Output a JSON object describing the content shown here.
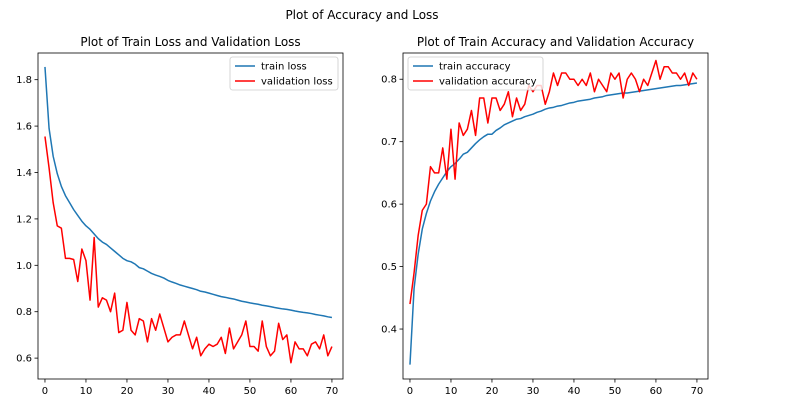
{
  "suptitle": "Plot of Accuracy and Loss",
  "chart_data": [
    {
      "type": "line",
      "title": "Plot of Train Loss and Validation Loss",
      "xlabel": "",
      "ylabel": "",
      "xlim": [
        -1.7,
        72.7
      ],
      "ylim": [
        0.51,
        1.915
      ],
      "xticks": [
        0,
        10,
        20,
        30,
        40,
        50,
        60,
        70
      ],
      "yticks": [
        0.6,
        0.8,
        1.0,
        1.2,
        1.4,
        1.6,
        1.8
      ],
      "ytick_format": 1,
      "grid": false,
      "legend": "upper right",
      "x": [
        0,
        1,
        2,
        3,
        4,
        5,
        6,
        7,
        8,
        9,
        10,
        11,
        12,
        13,
        14,
        15,
        16,
        17,
        18,
        19,
        20,
        21,
        22,
        23,
        24,
        25,
        26,
        27,
        28,
        29,
        30,
        31,
        32,
        33,
        34,
        35,
        36,
        37,
        38,
        39,
        40,
        41,
        42,
        43,
        44,
        45,
        46,
        47,
        48,
        49,
        50,
        51,
        52,
        53,
        54,
        55,
        56,
        57,
        58,
        59,
        60,
        61,
        62,
        63,
        64,
        65,
        66,
        67,
        68,
        69,
        70
      ],
      "series": [
        {
          "name": "train loss",
          "color": "#1f77b4",
          "values": [
            1.855,
            1.59,
            1.47,
            1.395,
            1.34,
            1.3,
            1.27,
            1.24,
            1.215,
            1.19,
            1.17,
            1.155,
            1.135,
            1.115,
            1.1,
            1.09,
            1.075,
            1.06,
            1.045,
            1.03,
            1.02,
            1.015,
            1.005,
            0.99,
            0.985,
            0.975,
            0.965,
            0.958,
            0.952,
            0.945,
            0.935,
            0.928,
            0.922,
            0.915,
            0.91,
            0.905,
            0.9,
            0.895,
            0.888,
            0.885,
            0.88,
            0.875,
            0.87,
            0.865,
            0.862,
            0.858,
            0.855,
            0.85,
            0.845,
            0.842,
            0.838,
            0.835,
            0.832,
            0.828,
            0.825,
            0.822,
            0.818,
            0.815,
            0.812,
            0.81,
            0.807,
            0.803,
            0.8,
            0.797,
            0.795,
            0.792,
            0.788,
            0.785,
            0.782,
            0.778,
            0.775
          ]
        },
        {
          "name": "validation loss",
          "color": "#ff0000",
          "values": [
            1.555,
            1.42,
            1.27,
            1.17,
            1.16,
            1.03,
            1.03,
            1.025,
            0.93,
            1.07,
            1.02,
            0.85,
            1.12,
            0.82,
            0.86,
            0.85,
            0.8,
            0.88,
            0.71,
            0.72,
            0.84,
            0.72,
            0.7,
            0.77,
            0.76,
            0.67,
            0.77,
            0.72,
            0.79,
            0.73,
            0.67,
            0.69,
            0.7,
            0.7,
            0.76,
            0.7,
            0.64,
            0.69,
            0.61,
            0.64,
            0.66,
            0.65,
            0.66,
            0.69,
            0.62,
            0.73,
            0.64,
            0.67,
            0.7,
            0.76,
            0.65,
            0.65,
            0.63,
            0.76,
            0.65,
            0.61,
            0.63,
            0.75,
            0.68,
            0.7,
            0.58,
            0.67,
            0.64,
            0.64,
            0.61,
            0.66,
            0.67,
            0.64,
            0.7,
            0.61,
            0.65
          ]
        }
      ]
    },
    {
      "type": "line",
      "title": "Plot of Train Accuracy and Validation Accuracy",
      "xlabel": "",
      "ylabel": "",
      "xlim": [
        -1.7,
        72.7
      ],
      "ylim": [
        0.32,
        0.842
      ],
      "xticks": [
        0,
        10,
        20,
        30,
        40,
        50,
        60,
        70
      ],
      "yticks": [
        0.4,
        0.5,
        0.6,
        0.7,
        0.8
      ],
      "ytick_format": 1,
      "grid": false,
      "legend": "upper left",
      "x": [
        0,
        1,
        2,
        3,
        4,
        5,
        6,
        7,
        8,
        9,
        10,
        11,
        12,
        13,
        14,
        15,
        16,
        17,
        18,
        19,
        20,
        21,
        22,
        23,
        24,
        25,
        26,
        27,
        28,
        29,
        30,
        31,
        32,
        33,
        34,
        35,
        36,
        37,
        38,
        39,
        40,
        41,
        42,
        43,
        44,
        45,
        46,
        47,
        48,
        49,
        50,
        51,
        52,
        53,
        54,
        55,
        56,
        57,
        58,
        59,
        60,
        61,
        62,
        63,
        64,
        65,
        66,
        67,
        68,
        69,
        70
      ],
      "series": [
        {
          "name": "train accuracy",
          "color": "#1f77b4",
          "values": [
            0.343,
            0.465,
            0.52,
            0.56,
            0.585,
            0.605,
            0.62,
            0.632,
            0.642,
            0.652,
            0.66,
            0.665,
            0.672,
            0.68,
            0.683,
            0.69,
            0.697,
            0.703,
            0.708,
            0.712,
            0.712,
            0.718,
            0.722,
            0.727,
            0.73,
            0.733,
            0.736,
            0.737,
            0.74,
            0.742,
            0.744,
            0.747,
            0.749,
            0.752,
            0.754,
            0.755,
            0.757,
            0.758,
            0.76,
            0.762,
            0.763,
            0.765,
            0.766,
            0.767,
            0.768,
            0.77,
            0.771,
            0.772,
            0.774,
            0.775,
            0.776,
            0.777,
            0.778,
            0.778,
            0.779,
            0.78,
            0.781,
            0.782,
            0.783,
            0.784,
            0.785,
            0.786,
            0.787,
            0.788,
            0.789,
            0.79,
            0.79,
            0.791,
            0.792,
            0.793,
            0.794
          ]
        },
        {
          "name": "validation accuracy",
          "color": "#ff0000",
          "values": [
            0.44,
            0.49,
            0.55,
            0.59,
            0.6,
            0.66,
            0.65,
            0.65,
            0.69,
            0.64,
            0.72,
            0.64,
            0.73,
            0.71,
            0.72,
            0.75,
            0.71,
            0.77,
            0.77,
            0.73,
            0.77,
            0.77,
            0.75,
            0.76,
            0.78,
            0.74,
            0.77,
            0.75,
            0.76,
            0.79,
            0.78,
            0.79,
            0.79,
            0.76,
            0.78,
            0.81,
            0.79,
            0.81,
            0.81,
            0.8,
            0.8,
            0.79,
            0.8,
            0.79,
            0.81,
            0.78,
            0.8,
            0.79,
            0.78,
            0.81,
            0.8,
            0.81,
            0.77,
            0.8,
            0.81,
            0.8,
            0.78,
            0.8,
            0.79,
            0.81,
            0.83,
            0.8,
            0.82,
            0.82,
            0.81,
            0.81,
            0.8,
            0.81,
            0.79,
            0.81,
            0.8
          ]
        }
      ]
    }
  ]
}
